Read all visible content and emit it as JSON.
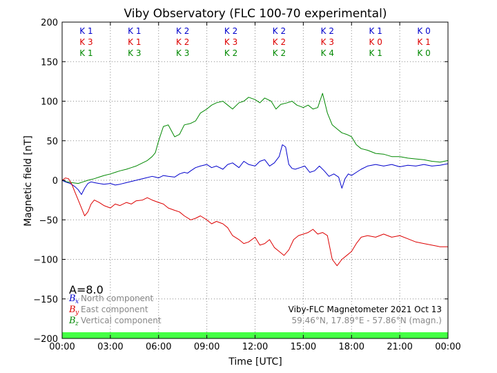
{
  "chart_data": {
    "type": "line",
    "title": "Viby Observatory (FLC 100-70 experimental)",
    "xlabel": "Time [UTC]",
    "ylabel": "Magnetic field [nT]",
    "xlim": [
      0,
      24
    ],
    "ylim": [
      -200,
      200
    ],
    "grid": true,
    "x_ticks": [
      0,
      3,
      6,
      9,
      12,
      15,
      18,
      21,
      24
    ],
    "x_tick_labels": [
      "00:00",
      "03:00",
      "06:00",
      "09:00",
      "12:00",
      "15:00",
      "18:00",
      "21:00",
      "00:00"
    ],
    "y_ticks": [
      -200,
      -150,
      -100,
      -50,
      0,
      50,
      100,
      150,
      200
    ],
    "y_tick_labels": [
      "−200",
      "−150",
      "−100",
      "−50",
      "0",
      "50",
      "100",
      "150",
      "200"
    ],
    "k_indices": {
      "x_centers": [
        1.5,
        4.5,
        7.5,
        10.5,
        13.5,
        16.5,
        19.5,
        22.5
      ],
      "rows": [
        {
          "color": "#0000cc",
          "labels": [
            "K 1",
            "K 1",
            "K 2",
            "K 2",
            "K 2",
            "K 2",
            "K 1",
            "K 0"
          ]
        },
        {
          "color": "#dd0000",
          "labels": [
            "K 3",
            "K 1",
            "K 2",
            "K 3",
            "K 2",
            "K 3",
            "K 0",
            "K 1"
          ]
        },
        {
          "color": "#008800",
          "labels": [
            "K 1",
            "K 3",
            "K 3",
            "K 2",
            "K 2",
            "K 4",
            "K 1",
            "K 0"
          ]
        }
      ]
    },
    "series": [
      {
        "name": "North component",
        "symbol": "B",
        "subscript": "x",
        "color": "#0000cc",
        "x": [
          0,
          0.2,
          0.5,
          0.8,
          1.0,
          1.2,
          1.4,
          1.6,
          1.8,
          2.0,
          2.3,
          2.6,
          3.0,
          3.3,
          3.6,
          4.0,
          4.4,
          4.8,
          5.2,
          5.6,
          5.8,
          6.0,
          6.3,
          6.6,
          7.0,
          7.3,
          7.6,
          7.8,
          8.0,
          8.3,
          8.6,
          9.0,
          9.3,
          9.6,
          10.0,
          10.3,
          10.6,
          11.0,
          11.3,
          11.6,
          12.0,
          12.3,
          12.6,
          12.9,
          13.2,
          13.5,
          13.7,
          13.9,
          14.1,
          14.3,
          14.5,
          14.8,
          15.1,
          15.4,
          15.7,
          16.0,
          16.3,
          16.6,
          16.9,
          17.2,
          17.4,
          17.6,
          17.8,
          18.0,
          18.3,
          18.6,
          19.0,
          19.5,
          20.0,
          20.5,
          21.0,
          21.5,
          22.0,
          22.5,
          23.0,
          23.5,
          24.0
        ],
        "y": [
          0,
          -2,
          -4,
          -8,
          -12,
          -18,
          -10,
          -4,
          -2,
          -3,
          -4,
          -5,
          -4,
          -6,
          -5,
          -3,
          -1,
          1,
          3,
          5,
          4,
          3,
          6,
          5,
          4,
          8,
          10,
          9,
          12,
          16,
          18,
          20,
          16,
          18,
          14,
          20,
          22,
          16,
          24,
          20,
          18,
          24,
          26,
          18,
          22,
          30,
          45,
          42,
          20,
          15,
          14,
          16,
          18,
          10,
          12,
          18,
          12,
          5,
          8,
          4,
          -10,
          2,
          8,
          6,
          10,
          14,
          18,
          20,
          18,
          20,
          17,
          19,
          18,
          20,
          18,
          19,
          21
        ]
      },
      {
        "name": "East component",
        "symbol": "B",
        "subscript": "y",
        "color": "#dd0000",
        "x": [
          0,
          0.2,
          0.4,
          0.6,
          0.8,
          1.0,
          1.2,
          1.4,
          1.6,
          1.8,
          2.0,
          2.3,
          2.6,
          3.0,
          3.3,
          3.6,
          4.0,
          4.3,
          4.6,
          5.0,
          5.3,
          5.6,
          6.0,
          6.3,
          6.6,
          7.0,
          7.3,
          7.6,
          8.0,
          8.3,
          8.6,
          9.0,
          9.3,
          9.6,
          10.0,
          10.3,
          10.6,
          11.0,
          11.3,
          11.6,
          12.0,
          12.3,
          12.6,
          12.9,
          13.2,
          13.5,
          13.8,
          14.1,
          14.4,
          14.7,
          15.0,
          15.3,
          15.6,
          15.9,
          16.2,
          16.5,
          16.8,
          17.1,
          17.4,
          17.7,
          18.0,
          18.3,
          18.6,
          19.0,
          19.5,
          20.0,
          20.5,
          21.0,
          21.5,
          22.0,
          22.5,
          23.0,
          23.5,
          24.0
        ],
        "y": [
          0,
          3,
          2,
          -5,
          -15,
          -25,
          -35,
          -45,
          -40,
          -30,
          -25,
          -28,
          -32,
          -35,
          -30,
          -32,
          -28,
          -30,
          -26,
          -25,
          -22,
          -25,
          -28,
          -30,
          -35,
          -38,
          -40,
          -45,
          -50,
          -48,
          -45,
          -50,
          -55,
          -52,
          -55,
          -60,
          -70,
          -75,
          -80,
          -78,
          -72,
          -82,
          -80,
          -75,
          -85,
          -90,
          -95,
          -88,
          -75,
          -70,
          -68,
          -66,
          -62,
          -68,
          -66,
          -70,
          -100,
          -108,
          -100,
          -95,
          -90,
          -80,
          -72,
          -70,
          -72,
          -68,
          -72,
          -70,
          -74,
          -78,
          -80,
          -82,
          -84,
          -84
        ]
      },
      {
        "name": "Vertical component",
        "symbol": "B",
        "subscript": "z",
        "color": "#008800",
        "x": [
          0,
          0.3,
          0.6,
          1.0,
          1.3,
          1.6,
          2.0,
          2.3,
          2.6,
          3.0,
          3.3,
          3.6,
          4.0,
          4.3,
          4.6,
          5.0,
          5.3,
          5.6,
          5.8,
          6.0,
          6.3,
          6.6,
          7.0,
          7.3,
          7.6,
          8.0,
          8.3,
          8.6,
          9.0,
          9.3,
          9.6,
          10.0,
          10.3,
          10.6,
          11.0,
          11.3,
          11.6,
          12.0,
          12.3,
          12.6,
          13.0,
          13.3,
          13.6,
          14.0,
          14.3,
          14.6,
          15.0,
          15.3,
          15.6,
          15.9,
          16.2,
          16.5,
          16.8,
          17.1,
          17.4,
          17.7,
          18.0,
          18.3,
          18.6,
          19.0,
          19.5,
          20.0,
          20.5,
          21.0,
          21.5,
          22.0,
          22.5,
          23.0,
          23.5,
          24.0
        ],
        "y": [
          0,
          -2,
          -3,
          -4,
          -2,
          0,
          2,
          4,
          6,
          8,
          10,
          12,
          14,
          16,
          18,
          22,
          25,
          30,
          35,
          50,
          68,
          70,
          55,
          58,
          70,
          72,
          75,
          85,
          90,
          95,
          98,
          100,
          95,
          90,
          98,
          100,
          105,
          102,
          98,
          104,
          100,
          90,
          96,
          98,
          100,
          95,
          92,
          95,
          90,
          92,
          110,
          85,
          70,
          65,
          60,
          58,
          55,
          45,
          40,
          38,
          34,
          33,
          30,
          30,
          28,
          27,
          26,
          24,
          23,
          25
        ]
      }
    ]
  },
  "activity_index": "A=8.0",
  "footer": {
    "line1": "Viby-FLC Magnetometer 2021 Oct 13",
    "line2": "59.46°N, 17.89°E - 57.86°N (magn.)"
  },
  "colors": {
    "status_bar": "#44ff44",
    "grid": "#888888",
    "legend_text": "#888888"
  }
}
